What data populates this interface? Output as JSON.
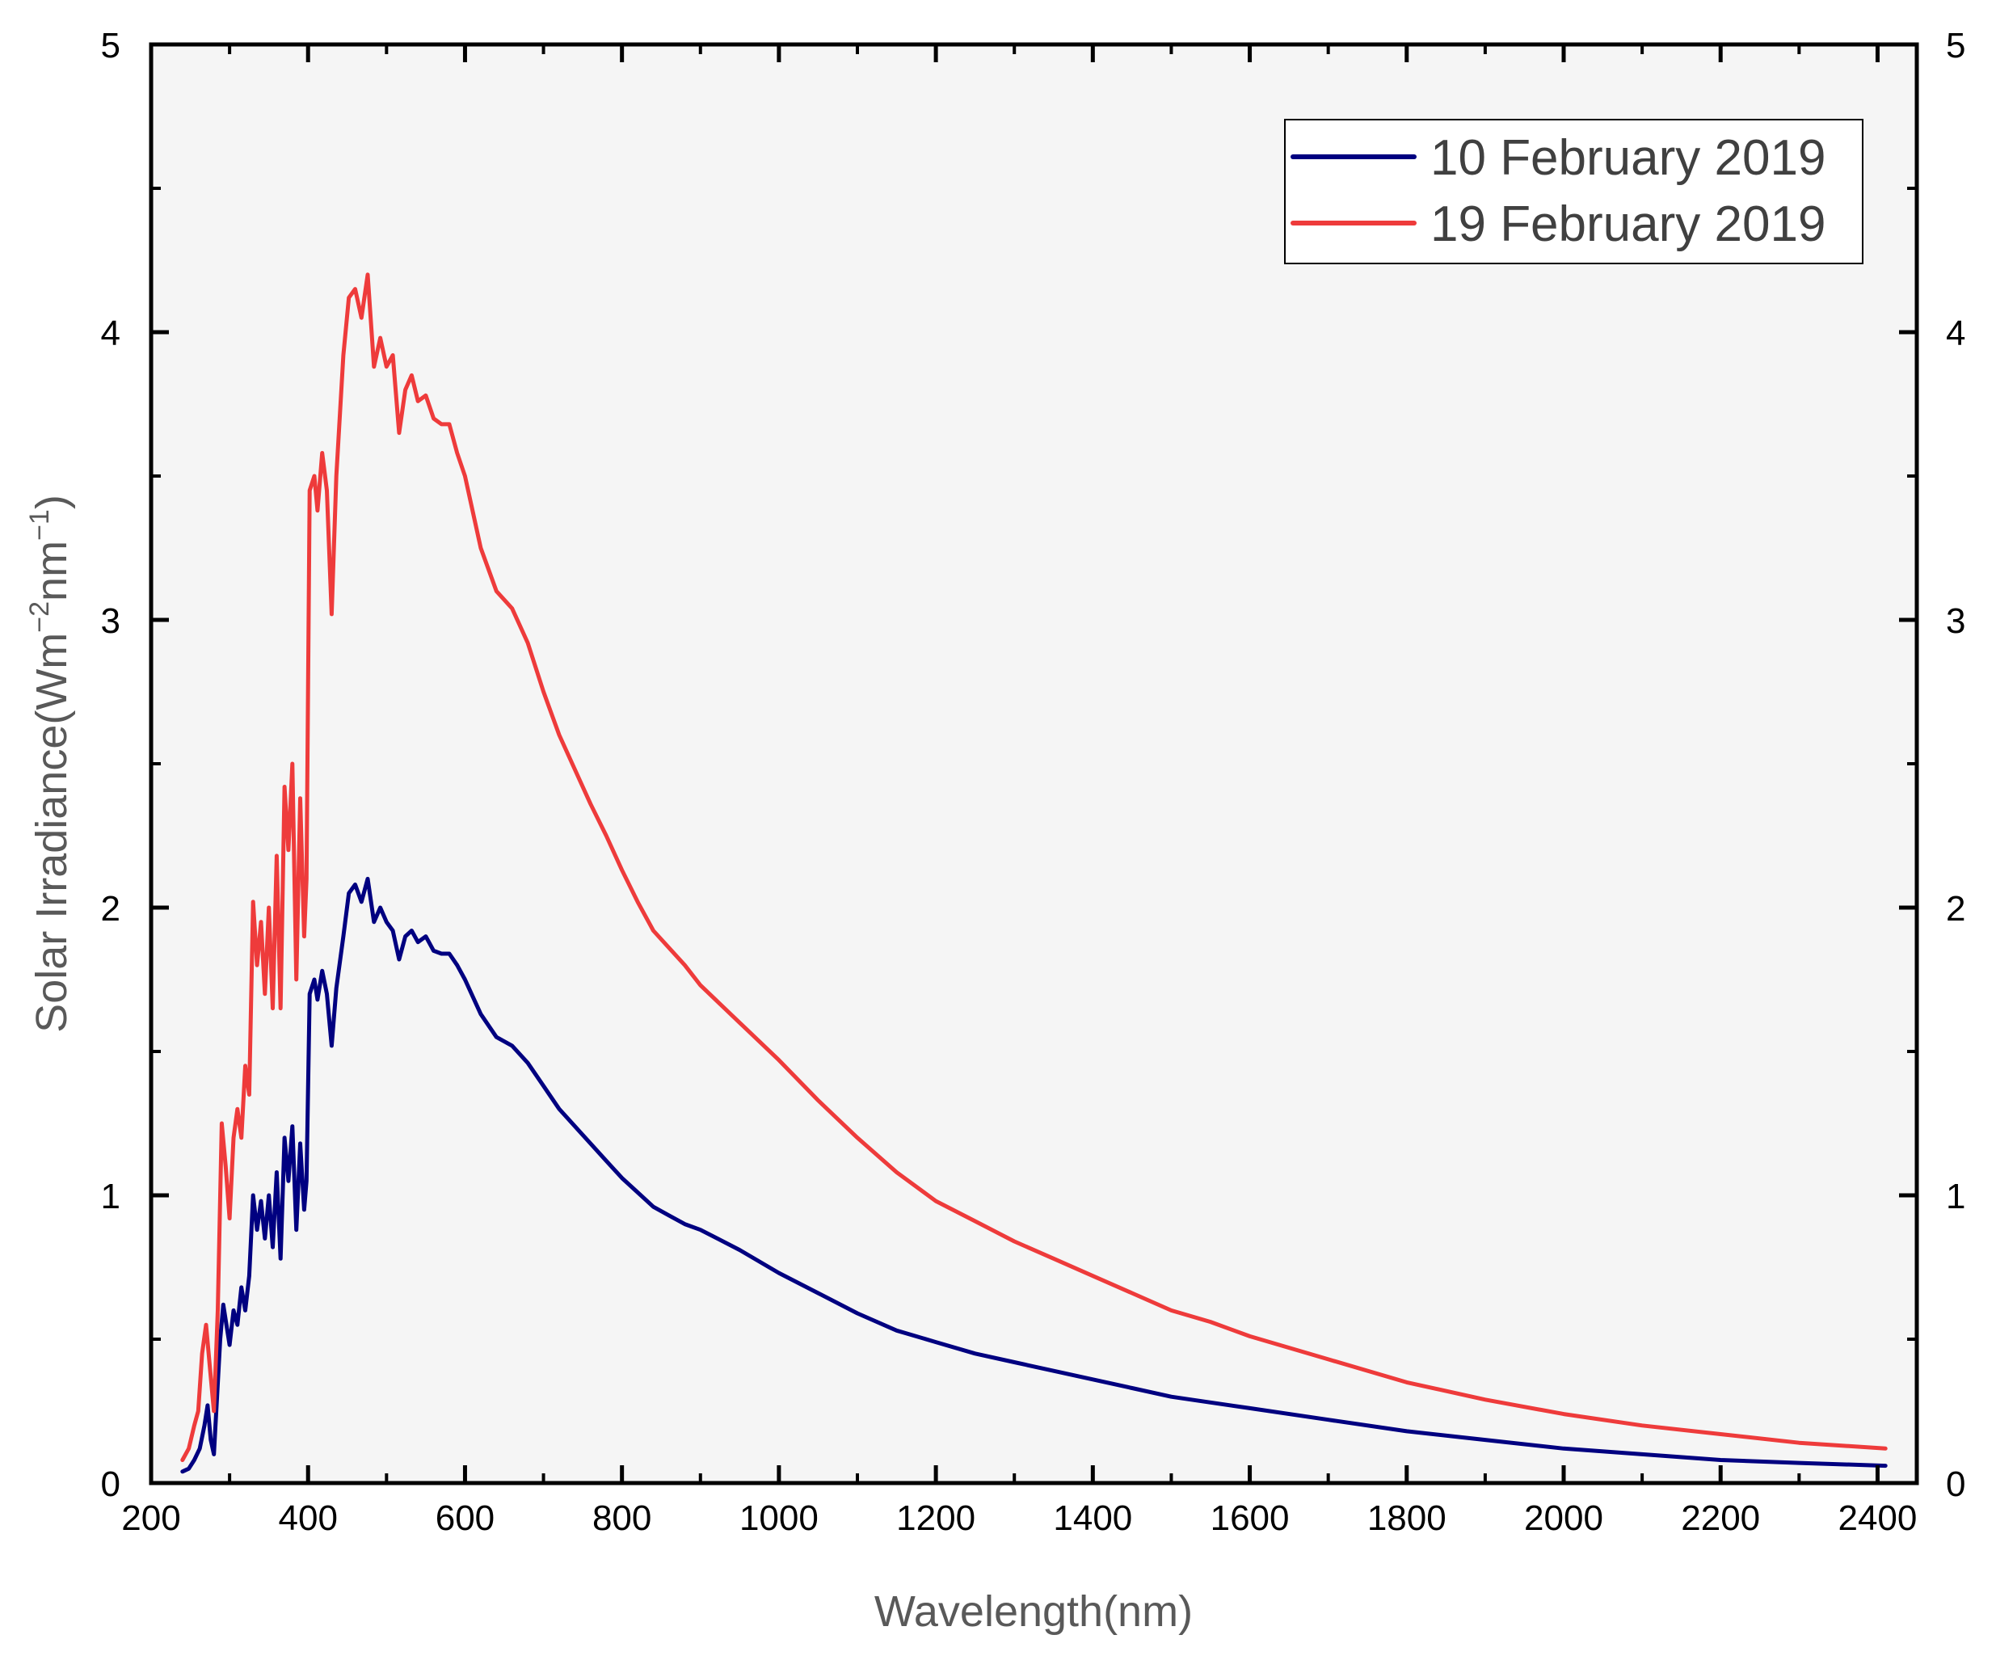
{
  "chart_data": {
    "type": "line",
    "title": "",
    "xlabel": "Wavelength(nm)",
    "ylabel": {
      "prefix": "Solar Irradiance(Wm",
      "sup1": "−2",
      "mid": "nm",
      "sup2": "−1",
      "suffix": ")"
    },
    "xlim": [
      200,
      2450
    ],
    "ylim": [
      0,
      5
    ],
    "xticks": [
      "200",
      "400",
      "600",
      "800",
      "1000",
      "1200",
      "1400",
      "1600",
      "1800",
      "2000",
      "2200",
      "2400"
    ],
    "yticks": [
      "0",
      "1",
      "2",
      "3",
      "4",
      "5"
    ],
    "right_yticks": [
      "0",
      "1",
      "2",
      "3",
      "4",
      "5"
    ],
    "grid": false,
    "legend_position": "top-right",
    "background_color": "#f5f5f5",
    "series": [
      {
        "name": "10 February 2019",
        "color": "#000080",
        "points": [
          [
            240,
            0.04
          ],
          [
            248,
            0.05
          ],
          [
            255,
            0.08
          ],
          [
            262,
            0.12
          ],
          [
            268,
            0.2
          ],
          [
            272,
            0.27
          ],
          [
            276,
            0.15
          ],
          [
            280,
            0.1
          ],
          [
            284,
            0.3
          ],
          [
            288,
            0.5
          ],
          [
            292,
            0.62
          ],
          [
            296,
            0.55
          ],
          [
            300,
            0.48
          ],
          [
            305,
            0.6
          ],
          [
            310,
            0.55
          ],
          [
            315,
            0.68
          ],
          [
            320,
            0.6
          ],
          [
            325,
            0.72
          ],
          [
            330,
            1.0
          ],
          [
            335,
            0.88
          ],
          [
            340,
            0.98
          ],
          [
            345,
            0.85
          ],
          [
            350,
            1.0
          ],
          [
            355,
            0.82
          ],
          [
            360,
            1.08
          ],
          [
            365,
            0.78
          ],
          [
            370,
            1.2
          ],
          [
            375,
            1.05
          ],
          [
            380,
            1.24
          ],
          [
            385,
            0.88
          ],
          [
            390,
            1.18
          ],
          [
            395,
            0.95
          ],
          [
            398,
            1.05
          ],
          [
            402,
            1.7
          ],
          [
            408,
            1.75
          ],
          [
            412,
            1.68
          ],
          [
            418,
            1.78
          ],
          [
            424,
            1.7
          ],
          [
            430,
            1.52
          ],
          [
            436,
            1.72
          ],
          [
            445,
            1.9
          ],
          [
            452,
            2.05
          ],
          [
            460,
            2.08
          ],
          [
            468,
            2.02
          ],
          [
            476,
            2.1
          ],
          [
            484,
            1.95
          ],
          [
            492,
            2.0
          ],
          [
            500,
            1.95
          ],
          [
            508,
            1.92
          ],
          [
            516,
            1.82
          ],
          [
            524,
            1.9
          ],
          [
            532,
            1.92
          ],
          [
            540,
            1.88
          ],
          [
            550,
            1.9
          ],
          [
            560,
            1.85
          ],
          [
            570,
            1.84
          ],
          [
            580,
            1.84
          ],
          [
            590,
            1.8
          ],
          [
            600,
            1.75
          ],
          [
            620,
            1.63
          ],
          [
            640,
            1.55
          ],
          [
            660,
            1.52
          ],
          [
            680,
            1.46
          ],
          [
            700,
            1.38
          ],
          [
            720,
            1.3
          ],
          [
            740,
            1.24
          ],
          [
            760,
            1.18
          ],
          [
            780,
            1.12
          ],
          [
            800,
            1.06
          ],
          [
            820,
            1.01
          ],
          [
            840,
            0.96
          ],
          [
            860,
            0.93
          ],
          [
            880,
            0.9
          ],
          [
            900,
            0.88
          ],
          [
            950,
            0.81
          ],
          [
            1000,
            0.73
          ],
          [
            1050,
            0.66
          ],
          [
            1100,
            0.59
          ],
          [
            1150,
            0.53
          ],
          [
            1200,
            0.49
          ],
          [
            1250,
            0.45
          ],
          [
            1300,
            0.42
          ],
          [
            1350,
            0.39
          ],
          [
            1400,
            0.36
          ],
          [
            1450,
            0.33
          ],
          [
            1500,
            0.3
          ],
          [
            1550,
            0.28
          ],
          [
            1600,
            0.26
          ],
          [
            1700,
            0.22
          ],
          [
            1800,
            0.18
          ],
          [
            1900,
            0.15
          ],
          [
            2000,
            0.12
          ],
          [
            2100,
            0.1
          ],
          [
            2200,
            0.08
          ],
          [
            2300,
            0.07
          ],
          [
            2410,
            0.06
          ]
        ]
      },
      {
        "name": "19 February 2019",
        "color": "#ee3b3b",
        "points": [
          [
            240,
            0.08
          ],
          [
            248,
            0.12
          ],
          [
            255,
            0.2
          ],
          [
            260,
            0.25
          ],
          [
            265,
            0.45
          ],
          [
            270,
            0.55
          ],
          [
            275,
            0.4
          ],
          [
            280,
            0.25
          ],
          [
            285,
            0.6
          ],
          [
            290,
            1.25
          ],
          [
            295,
            1.1
          ],
          [
            300,
            0.92
          ],
          [
            305,
            1.2
          ],
          [
            310,
            1.3
          ],
          [
            315,
            1.2
          ],
          [
            320,
            1.45
          ],
          [
            325,
            1.35
          ],
          [
            330,
            2.02
          ],
          [
            335,
            1.8
          ],
          [
            340,
            1.95
          ],
          [
            345,
            1.7
          ],
          [
            350,
            2.0
          ],
          [
            355,
            1.65
          ],
          [
            360,
            2.18
          ],
          [
            365,
            1.65
          ],
          [
            370,
            2.42
          ],
          [
            375,
            2.2
          ],
          [
            380,
            2.5
          ],
          [
            385,
            1.75
          ],
          [
            390,
            2.38
          ],
          [
            395,
            1.9
          ],
          [
            398,
            2.1
          ],
          [
            402,
            3.45
          ],
          [
            408,
            3.5
          ],
          [
            412,
            3.38
          ],
          [
            418,
            3.58
          ],
          [
            424,
            3.45
          ],
          [
            430,
            3.02
          ],
          [
            436,
            3.5
          ],
          [
            445,
            3.92
          ],
          [
            452,
            4.12
          ],
          [
            460,
            4.15
          ],
          [
            468,
            4.05
          ],
          [
            476,
            4.2
          ],
          [
            484,
            3.88
          ],
          [
            492,
            3.98
          ],
          [
            500,
            3.88
          ],
          [
            508,
            3.92
          ],
          [
            516,
            3.65
          ],
          [
            524,
            3.8
          ],
          [
            532,
            3.85
          ],
          [
            540,
            3.76
          ],
          [
            550,
            3.78
          ],
          [
            560,
            3.7
          ],
          [
            570,
            3.68
          ],
          [
            580,
            3.68
          ],
          [
            590,
            3.58
          ],
          [
            600,
            3.5
          ],
          [
            620,
            3.25
          ],
          [
            640,
            3.1
          ],
          [
            660,
            3.04
          ],
          [
            680,
            2.92
          ],
          [
            700,
            2.75
          ],
          [
            720,
            2.6
          ],
          [
            740,
            2.48
          ],
          [
            760,
            2.36
          ],
          [
            780,
            2.25
          ],
          [
            800,
            2.13
          ],
          [
            820,
            2.02
          ],
          [
            840,
            1.92
          ],
          [
            860,
            1.86
          ],
          [
            880,
            1.8
          ],
          [
            900,
            1.73
          ],
          [
            950,
            1.6
          ],
          [
            1000,
            1.47
          ],
          [
            1050,
            1.33
          ],
          [
            1100,
            1.2
          ],
          [
            1150,
            1.08
          ],
          [
            1200,
            0.98
          ],
          [
            1250,
            0.91
          ],
          [
            1300,
            0.84
          ],
          [
            1350,
            0.78
          ],
          [
            1400,
            0.72
          ],
          [
            1450,
            0.66
          ],
          [
            1500,
            0.6
          ],
          [
            1550,
            0.56
          ],
          [
            1600,
            0.51
          ],
          [
            1700,
            0.43
          ],
          [
            1800,
            0.35
          ],
          [
            1900,
            0.29
          ],
          [
            2000,
            0.24
          ],
          [
            2100,
            0.2
          ],
          [
            2200,
            0.17
          ],
          [
            2300,
            0.14
          ],
          [
            2410,
            0.12
          ]
        ]
      }
    ]
  }
}
